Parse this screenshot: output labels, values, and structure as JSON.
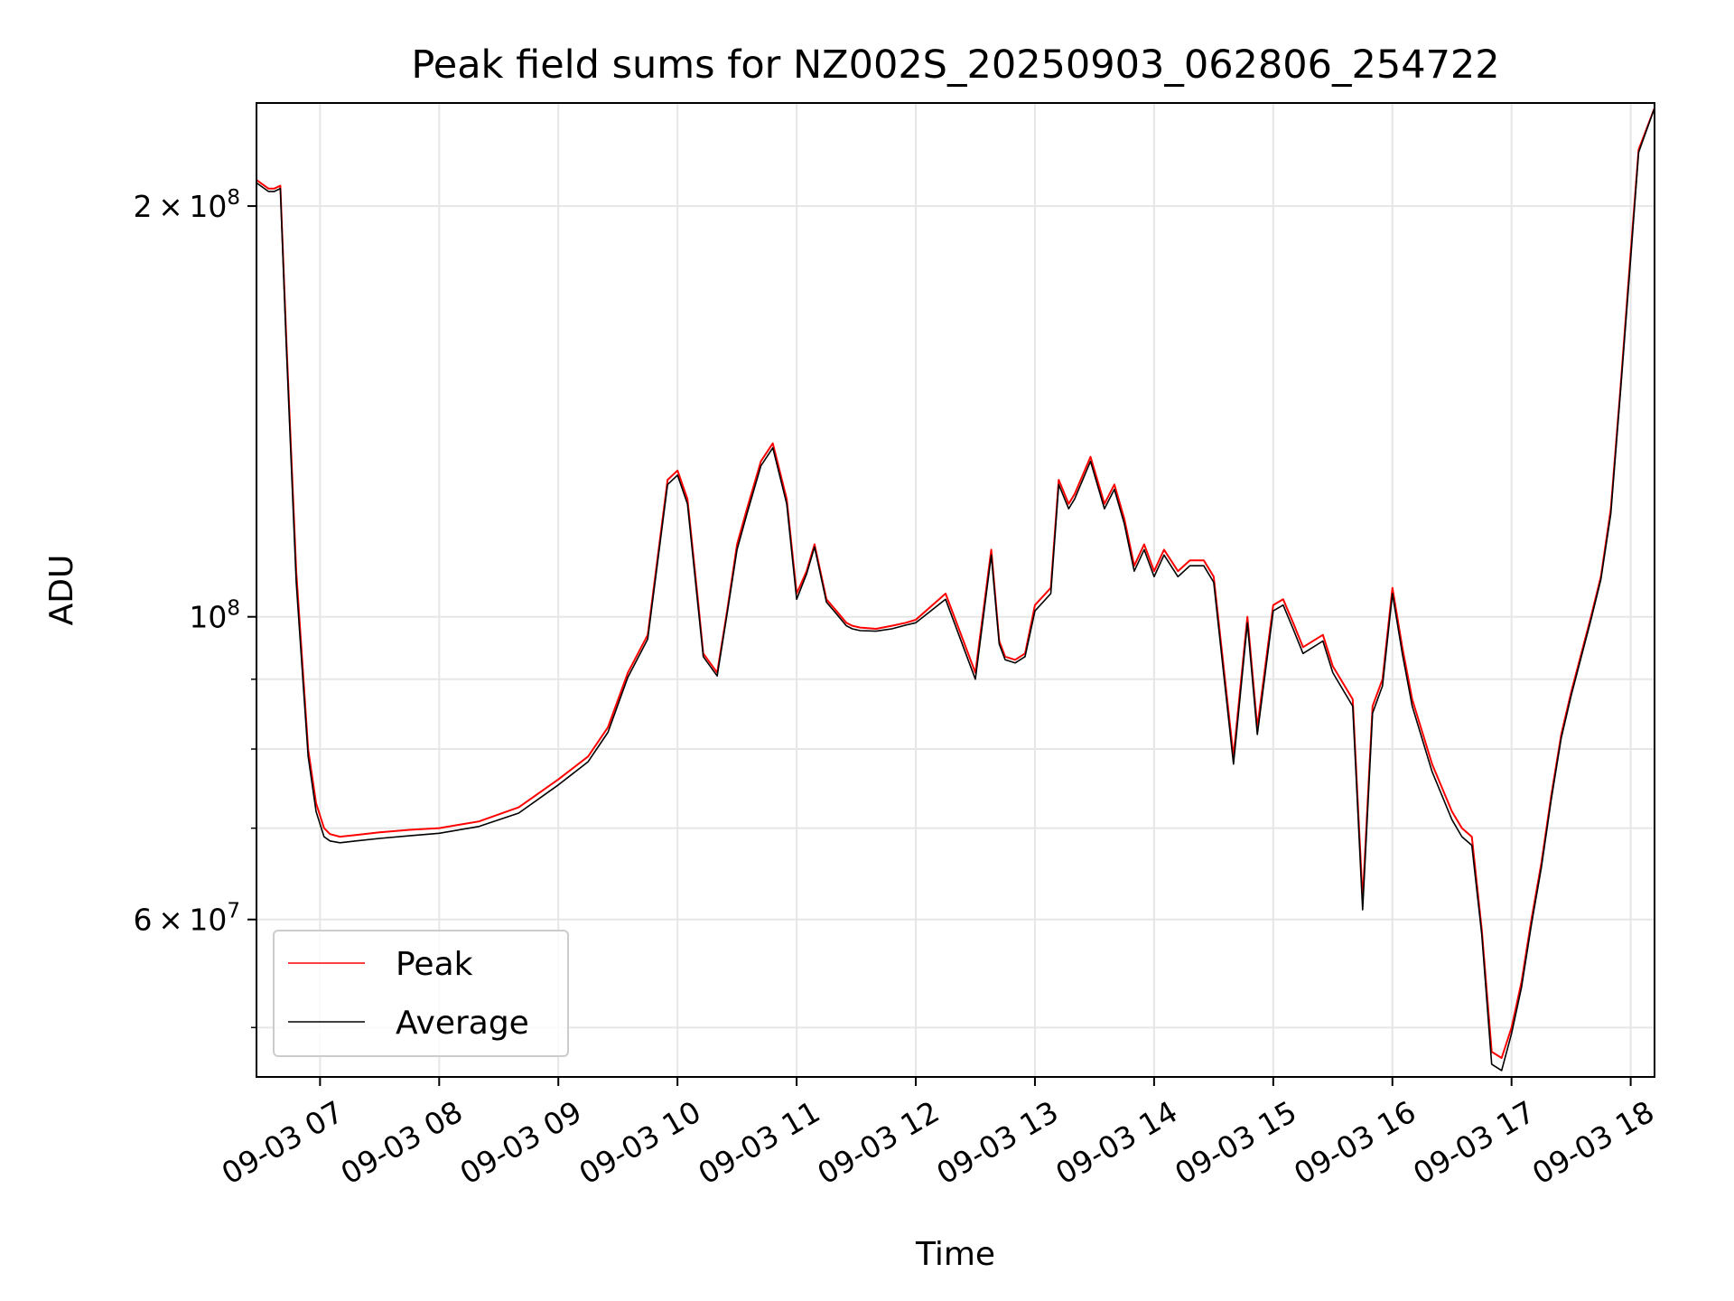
{
  "chart_data": {
    "type": "line",
    "title": "Peak field sums for NZ002S_20250903_062806_254722",
    "xlabel": "Time",
    "ylabel": "ADU",
    "yscale": "log",
    "xlim": [
      "2025-09-03 06:28",
      "2025-09-03 18:12"
    ],
    "ylim": [
      46000000,
      238000000
    ],
    "grid": true,
    "legend_position": "lower left",
    "x_ticks": [
      {
        "time": "2025-09-03 07:00",
        "label": "09-03 07"
      },
      {
        "time": "2025-09-03 08:00",
        "label": "09-03 08"
      },
      {
        "time": "2025-09-03 09:00",
        "label": "09-03 09"
      },
      {
        "time": "2025-09-03 10:00",
        "label": "09-03 10"
      },
      {
        "time": "2025-09-03 11:00",
        "label": "09-03 11"
      },
      {
        "time": "2025-09-03 12:00",
        "label": "09-03 12"
      },
      {
        "time": "2025-09-03 13:00",
        "label": "09-03 13"
      },
      {
        "time": "2025-09-03 14:00",
        "label": "09-03 14"
      },
      {
        "time": "2025-09-03 15:00",
        "label": "09-03 15"
      },
      {
        "time": "2025-09-03 16:00",
        "label": "09-03 16"
      },
      {
        "time": "2025-09-03 17:00",
        "label": "09-03 17"
      },
      {
        "time": "2025-09-03 18:00",
        "label": "09-03 18"
      }
    ],
    "y_major_ticks": [
      {
        "value": 60000000,
        "mantissa": "6",
        "base": "10",
        "exp": "7"
      },
      {
        "value": 100000000,
        "mantissa": "",
        "base": "10",
        "exp": "8"
      },
      {
        "value": 200000000,
        "mantissa": "2",
        "base": "10",
        "exp": "8"
      }
    ],
    "y_minor_ticks": [
      50000000,
      70000000,
      80000000,
      90000000
    ],
    "series": [
      {
        "name": "Peak",
        "color": "#ff0000",
        "x": [
          "2025-09-03 06:28",
          "2025-09-03 06:34",
          "2025-09-03 06:37",
          "2025-09-03 06:40",
          "2025-09-03 06:43",
          "2025-09-03 06:48",
          "2025-09-03 06:54",
          "2025-09-03 06:58",
          "2025-09-03 07:02",
          "2025-09-03 07:05",
          "2025-09-03 07:10",
          "2025-09-03 07:18",
          "2025-09-03 07:30",
          "2025-09-03 07:45",
          "2025-09-03 08:00",
          "2025-09-03 08:20",
          "2025-09-03 08:40",
          "2025-09-03 09:00",
          "2025-09-03 09:15",
          "2025-09-03 09:25",
          "2025-09-03 09:35",
          "2025-09-03 09:45",
          "2025-09-03 09:55",
          "2025-09-03 10:00",
          "2025-09-03 10:05",
          "2025-09-03 10:10",
          "2025-09-03 10:13",
          "2025-09-03 10:20",
          "2025-09-03 10:25",
          "2025-09-03 10:30",
          "2025-09-03 10:35",
          "2025-09-03 10:42",
          "2025-09-03 10:48",
          "2025-09-03 10:55",
          "2025-09-03 11:00",
          "2025-09-03 11:05",
          "2025-09-03 11:09",
          "2025-09-03 11:15",
          "2025-09-03 11:20",
          "2025-09-03 11:25",
          "2025-09-03 11:28",
          "2025-09-03 11:32",
          "2025-09-03 11:40",
          "2025-09-03 11:48",
          "2025-09-03 11:55",
          "2025-09-03 12:00",
          "2025-09-03 12:15",
          "2025-09-03 12:30",
          "2025-09-03 12:38",
          "2025-09-03 12:42",
          "2025-09-03 12:45",
          "2025-09-03 12:50",
          "2025-09-03 12:55",
          "2025-09-03 13:00",
          "2025-09-03 13:08",
          "2025-09-03 13:12",
          "2025-09-03 13:17",
          "2025-09-03 13:20",
          "2025-09-03 13:28",
          "2025-09-03 13:35",
          "2025-09-03 13:40",
          "2025-09-03 13:45",
          "2025-09-03 13:50",
          "2025-09-03 13:55",
          "2025-09-03 14:00",
          "2025-09-03 14:05",
          "2025-09-03 14:12",
          "2025-09-03 14:18",
          "2025-09-03 14:25",
          "2025-09-03 14:30",
          "2025-09-03 14:40",
          "2025-09-03 14:47",
          "2025-09-03 14:52",
          "2025-09-03 14:56",
          "2025-09-03 15:00",
          "2025-09-03 15:05",
          "2025-09-03 15:10",
          "2025-09-03 15:15",
          "2025-09-03 15:25",
          "2025-09-03 15:30",
          "2025-09-03 15:40",
          "2025-09-03 15:45",
          "2025-09-03 15:50",
          "2025-09-03 15:55",
          "2025-09-03 16:00",
          "2025-09-03 16:05",
          "2025-09-03 16:10",
          "2025-09-03 16:20",
          "2025-09-03 16:30",
          "2025-09-03 16:35",
          "2025-09-03 16:40",
          "2025-09-03 16:45",
          "2025-09-03 16:50",
          "2025-09-03 16:55",
          "2025-09-03 17:00",
          "2025-09-03 17:05",
          "2025-09-03 17:10",
          "2025-09-03 17:15",
          "2025-09-03 17:20",
          "2025-09-03 17:25",
          "2025-09-03 17:30",
          "2025-09-03 17:40",
          "2025-09-03 17:45",
          "2025-09-03 17:50",
          "2025-09-03 17:55",
          "2025-09-03 18:00",
          "2025-09-03 18:04",
          "2025-09-03 18:12"
        ],
        "values": [
          209000000,
          206000000,
          206000000,
          207000000,
          160000000,
          108000000,
          80000000,
          73000000,
          70000000,
          69300000,
          69000000,
          69200000,
          69500000,
          69800000,
          70000000,
          70800000,
          72500000,
          76000000,
          79000000,
          83000000,
          91000000,
          97000000,
          126000000,
          128000000,
          122000000,
          104000000,
          94000000,
          91000000,
          101000000,
          113000000,
          120000000,
          130000000,
          134000000,
          122000000,
          104000000,
          108000000,
          113000000,
          103000000,
          101000000,
          99000000,
          98500000,
          98200000,
          98000000,
          98500000,
          99000000,
          99500000,
          104000000,
          91000000,
          112000000,
          96000000,
          93500000,
          93000000,
          94000000,
          102000000,
          105000000,
          126000000,
          121000000,
          123000000,
          131000000,
          121000000,
          125000000,
          118000000,
          109000000,
          113000000,
          108000000,
          112000000,
          108000000,
          110000000,
          110000000,
          107000000,
          79000000,
          100000000,
          83000000,
          92000000,
          102000000,
          103000000,
          99000000,
          95000000,
          97000000,
          92000000,
          87000000,
          62000000,
          86000000,
          90000000,
          105000000,
          95000000,
          87000000,
          78000000,
          72000000,
          70000000,
          69000000,
          59000000,
          48000000,
          47500000,
          50000000,
          54000000,
          60000000,
          66000000,
          74000000,
          82000000,
          88000000,
          100000000,
          107000000,
          120000000,
          148000000,
          185000000,
          220000000,
          236000000
        ]
      },
      {
        "name": "Average",
        "color": "#000000",
        "x": [
          "2025-09-03 06:28",
          "2025-09-03 06:34",
          "2025-09-03 06:37",
          "2025-09-03 06:40",
          "2025-09-03 06:43",
          "2025-09-03 06:48",
          "2025-09-03 06:54",
          "2025-09-03 06:58",
          "2025-09-03 07:02",
          "2025-09-03 07:05",
          "2025-09-03 07:10",
          "2025-09-03 07:18",
          "2025-09-03 07:30",
          "2025-09-03 07:45",
          "2025-09-03 08:00",
          "2025-09-03 08:20",
          "2025-09-03 08:40",
          "2025-09-03 09:00",
          "2025-09-03 09:15",
          "2025-09-03 09:25",
          "2025-09-03 09:35",
          "2025-09-03 09:45",
          "2025-09-03 09:55",
          "2025-09-03 10:00",
          "2025-09-03 10:05",
          "2025-09-03 10:10",
          "2025-09-03 10:13",
          "2025-09-03 10:20",
          "2025-09-03 10:25",
          "2025-09-03 10:30",
          "2025-09-03 10:35",
          "2025-09-03 10:42",
          "2025-09-03 10:48",
          "2025-09-03 10:55",
          "2025-09-03 11:00",
          "2025-09-03 11:05",
          "2025-09-03 11:09",
          "2025-09-03 11:15",
          "2025-09-03 11:20",
          "2025-09-03 11:25",
          "2025-09-03 11:28",
          "2025-09-03 11:32",
          "2025-09-03 11:40",
          "2025-09-03 11:48",
          "2025-09-03 11:55",
          "2025-09-03 12:00",
          "2025-09-03 12:15",
          "2025-09-03 12:30",
          "2025-09-03 12:38",
          "2025-09-03 12:42",
          "2025-09-03 12:45",
          "2025-09-03 12:50",
          "2025-09-03 12:55",
          "2025-09-03 13:00",
          "2025-09-03 13:08",
          "2025-09-03 13:12",
          "2025-09-03 13:17",
          "2025-09-03 13:20",
          "2025-09-03 13:28",
          "2025-09-03 13:35",
          "2025-09-03 13:40",
          "2025-09-03 13:45",
          "2025-09-03 13:50",
          "2025-09-03 13:55",
          "2025-09-03 14:00",
          "2025-09-03 14:05",
          "2025-09-03 14:12",
          "2025-09-03 14:18",
          "2025-09-03 14:25",
          "2025-09-03 14:30",
          "2025-09-03 14:40",
          "2025-09-03 14:47",
          "2025-09-03 14:52",
          "2025-09-03 14:56",
          "2025-09-03 15:00",
          "2025-09-03 15:05",
          "2025-09-03 15:10",
          "2025-09-03 15:15",
          "2025-09-03 15:25",
          "2025-09-03 15:30",
          "2025-09-03 15:40",
          "2025-09-03 15:45",
          "2025-09-03 15:50",
          "2025-09-03 15:55",
          "2025-09-03 16:00",
          "2025-09-03 16:05",
          "2025-09-03 16:10",
          "2025-09-03 16:20",
          "2025-09-03 16:30",
          "2025-09-03 16:35",
          "2025-09-03 16:40",
          "2025-09-03 16:45",
          "2025-09-03 16:50",
          "2025-09-03 16:55",
          "2025-09-03 17:00",
          "2025-09-03 17:05",
          "2025-09-03 17:10",
          "2025-09-03 17:15",
          "2025-09-03 17:20",
          "2025-09-03 17:25",
          "2025-09-03 17:30",
          "2025-09-03 17:40",
          "2025-09-03 17:45",
          "2025-09-03 17:50",
          "2025-09-03 17:55",
          "2025-09-03 18:00",
          "2025-09-03 18:04",
          "2025-09-03 18:12"
        ],
        "values": [
          208000000,
          205000000,
          205000000,
          206000000,
          158000000,
          106000000,
          79000000,
          72000000,
          69000000,
          68500000,
          68300000,
          68500000,
          68800000,
          69100000,
          69400000,
          70200000,
          71800000,
          75300000,
          78300000,
          82300000,
          90300000,
          96300000,
          125000000,
          127000000,
          121000000,
          103000000,
          93500000,
          90500000,
          100500000,
          112000000,
          119000000,
          129000000,
          133000000,
          121000000,
          103000000,
          107500000,
          112500000,
          102500000,
          100500000,
          98500000,
          98000000,
          97700000,
          97600000,
          98000000,
          98600000,
          99000000,
          103000000,
          90000000,
          111000000,
          95500000,
          93000000,
          92500000,
          93500000,
          101000000,
          104000000,
          125000000,
          120000000,
          122000000,
          130000000,
          120000000,
          124000000,
          117000000,
          108000000,
          112000000,
          107000000,
          111000000,
          107000000,
          109000000,
          109000000,
          106000000,
          78000000,
          99000000,
          82000000,
          91000000,
          101000000,
          102000000,
          98000000,
          94000000,
          96000000,
          91000000,
          86000000,
          61000000,
          85000000,
          89000000,
          104000000,
          94000000,
          86000000,
          77000000,
          71000000,
          69000000,
          68000000,
          58500000,
          47000000,
          46500000,
          49500000,
          53500000,
          59500000,
          65500000,
          73500000,
          81500000,
          87500000,
          99500000,
          106500000,
          119000000,
          147000000,
          183000000,
          219000000,
          236000000
        ]
      }
    ]
  }
}
